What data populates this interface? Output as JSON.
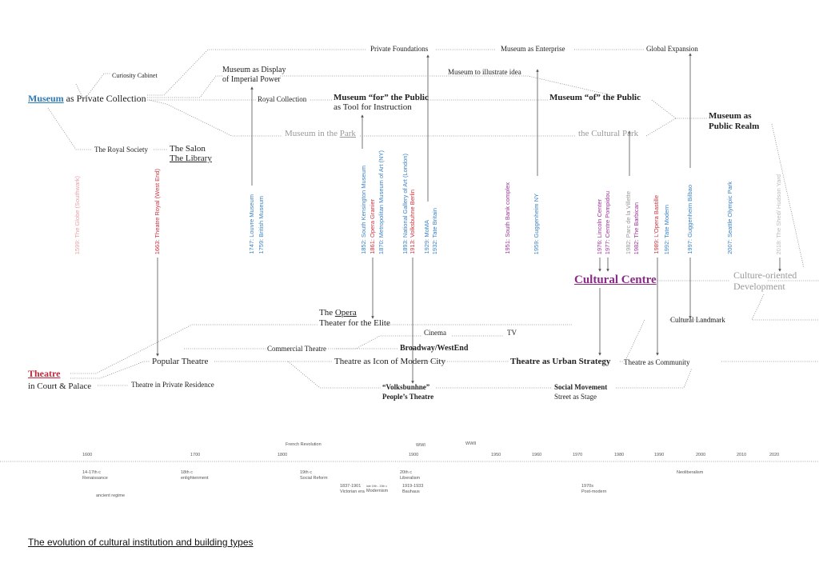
{
  "colors": {
    "museum": "#2e7ab8",
    "theatre": "#c0283c",
    "cultural": "#8a2a86",
    "grey": "#999999",
    "pink": "#e8a0a8",
    "blue": "#3a82c4",
    "red": "#d0303c",
    "purple": "#a0309a"
  },
  "museum": {
    "word": "Museum",
    "rest": " as Private Collection",
    "curiosity": "Curiosity Cabinet",
    "display1": "Museum as Display",
    "display2": "of Imperial Power",
    "private_foundations": "Private Foundations",
    "enterprise": "Museum as Enterprise",
    "global": "Global Expansion",
    "illustrate": "Museum to illustrate idea",
    "royal_collection": "Royal Collection",
    "for_public": "Museum “for” the Public",
    "tool": "as Tool for Instruction",
    "of_public": "Museum “of” the Public",
    "realm1": "Museum as",
    "realm2": "Public Realm",
    "park_pre": "Museum in the ",
    "park": "Park",
    "cultural_park": "the Cultural Park",
    "royal_society": "The Royal Society",
    "salon": "The Salon",
    "library": "The Library"
  },
  "center": {
    "cultural_centre": "Cultural Centre",
    "culture_dev1": "Culture-oriented",
    "culture_dev2": "Development",
    "cultural_landmark": "Cultural Landmark"
  },
  "theatre": {
    "word": "Theatre",
    "court": "in Court & Palace",
    "private_residence": "Theatre in Private Residence",
    "opera_pre": "The ",
    "opera": "Opera",
    "elite": "Theater for the Elite",
    "cinema": "Cinema",
    "tv": "TV",
    "commercial": "Commercial Theatre",
    "broadway": "Broadway/WestEnd",
    "popular": "Popular Theatre",
    "icon": "Theatre as Icon of Modern City",
    "urban": "Theatre as Urban Strategy",
    "community": "Theatre as Community",
    "volks": "“Volksbunhne”",
    "peoples": "People’s Theatre",
    "social": "Social Movement",
    "street": "Street as Stage"
  },
  "buildings": [
    {
      "text": "1599: The Globe (Southwark)",
      "color": "pink"
    },
    {
      "text": "1663: Theatre Royal (West End)",
      "color": "red"
    },
    {
      "text": "1747: Louvre Museum",
      "color": "blue"
    },
    {
      "text": "1759: British Museum",
      "color": "blue"
    },
    {
      "text": "1852: South Kensington Museum",
      "color": "blue"
    },
    {
      "text": "1861: Opera Granier",
      "color": "red"
    },
    {
      "text": "1870: Metropolitan Museum of Art (NY)",
      "color": "blue"
    },
    {
      "text": "1893: National Gallery of Art (London)",
      "color": "blue"
    },
    {
      "text": "1913: Volksbuhne Berlin",
      "color": "red"
    },
    {
      "text": "1929: MoMA",
      "color": "blue"
    },
    {
      "text": "1932: Tate Britain",
      "color": "blue"
    },
    {
      "text": "1951: South Bank complex",
      "color": "purple"
    },
    {
      "text": "1959: Guggenheim NY",
      "color": "blue"
    },
    {
      "text": "1976: Lincoln Center",
      "color": "purple"
    },
    {
      "text": "1977: Centre Pompidou",
      "color": "purple"
    },
    {
      "text": "1982: Parc de la Villette",
      "color": "grey"
    },
    {
      "text": "1982: The Barbican",
      "color": "purple"
    },
    {
      "text": "1989: L'Opera Bastille",
      "color": "red"
    },
    {
      "text": "1992: Tate Modern",
      "color": "blue"
    },
    {
      "text": "1997: Guggenheim Bilbao",
      "color": "blue"
    },
    {
      "text": "2007: Seattle Olympic Park",
      "color": "blue"
    },
    {
      "text": "2018: The Shed/ Hudson  Yard",
      "color": "grey"
    }
  ],
  "timeline": {
    "years": [
      "1600",
      "1700",
      "1800",
      "1900",
      "1950",
      "1960",
      "1970",
      "1980",
      "1990",
      "2000",
      "2010",
      "2020"
    ],
    "events": [
      "French Revolution",
      "WWI",
      "WWII"
    ],
    "eras": [
      [
        "14-17th c",
        "Renaissance"
      ],
      [
        "18th c",
        "enlightenment"
      ],
      [
        "19th c",
        "Social Reform"
      ],
      [
        "20th c",
        "Liberalism"
      ],
      [
        "Neoliberalism",
        ""
      ],
      [
        "1837-1901",
        "Victorian era"
      ],
      [
        "late 19th - 20th c",
        "Modernism"
      ],
      [
        "1919-1933",
        "Bauhaus"
      ],
      [
        "1970s",
        "Post-modern"
      ],
      [
        "ancient regime",
        ""
      ]
    ]
  },
  "title": "The evolution of cultural institution and building types"
}
